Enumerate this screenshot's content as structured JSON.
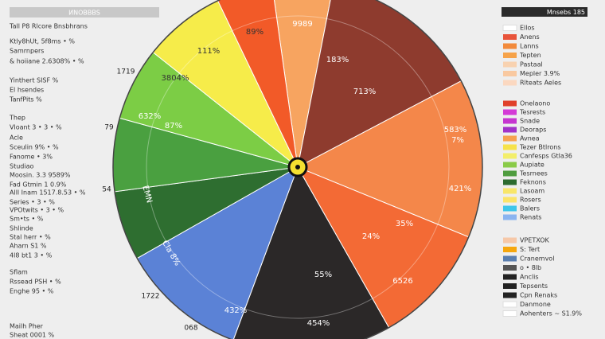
{
  "header": {
    "title": "ИNOBBBS",
    "right_title": "Mnsebs 185"
  },
  "left_panel": [
    "Tall P8 Rlcore Bnsbhrans",
    "Ktly8hUt, 5f8ms • %",
    "Samrnpers",
    "& hoiiane 2.6308% • %",
    "Yinthert SISF %",
    "El hsendes",
    "TanfPits %",
    "Thep",
    "Vloant 3 • 3 • %",
    "Acle",
    "Sceulin 9% • %",
    "Fanome • 3%",
    "Studiao",
    "Moosin. 3.3 9589%",
    "Fad Gtmin 1 0.9%",
    "Alll Inam 1517.8.53 • %",
    "Series • 3 • %",
    "VPOtwits • 3 • %",
    "Sm•ts • %",
    "Shlinde",
    "Stal herr • %",
    "Aharn S1 %",
    "4l8 bt1 3 • %",
    "Sflam",
    "Rssead PSH • %",
    "Enghe 95 • %",
    "Mailh Pher",
    "Sheat 0001 %"
  ],
  "chart_data": {
    "type": "pie",
    "categories": [
      null,
      null,
      null,
      null,
      null,
      null,
      null,
      null,
      null,
      null,
      null
    ],
    "values": [
      5.3,
      14.2,
      13.9,
      10.6,
      13.9,
      11.1,
      6.1,
      6.4,
      6.4,
      7.2,
      4.9
    ],
    "colors": [
      "#f7a460",
      "#8e3b2e",
      "#f4874a",
      "#f36a35",
      "#2b2828",
      "#5b82d6",
      "#2e6e30",
      "#4aa040",
      "#7ccd45",
      "#f6ec4a",
      "#f25a28"
    ],
    "annotations": [
      "89%",
      "9989",
      "111%",
      "183%",
      "3804%",
      "713%",
      "632%",
      "87%",
      "583%",
      "7%",
      "421%",
      "35%",
      "24%",
      "6526",
      "55%",
      "432%",
      "454%",
      "EMN",
      "Cla 8%"
    ],
    "outer_labels": [
      "1719",
      "79",
      "54",
      "1722",
      "068"
    ]
  },
  "legend_groups": [
    [
      {
        "name": "Ellos",
        "color": "#ffffff"
      },
      {
        "name": "Anens",
        "color": "#e8533a"
      },
      {
        "name": "Lanns",
        "color": "#f28a3b"
      },
      {
        "name": "Tepten",
        "color": "#f6a34a"
      },
      {
        "name": "Pastaal",
        "color": "#f8d2b0"
      },
      {
        "name": "Mepler 3.9%",
        "color": "#f9c9a0"
      },
      {
        "name": "Rlteats Aeles",
        "color": "#fbd8c0"
      }
    ],
    [
      {
        "name": "Onelaono",
        "color": "#e0402a"
      },
      {
        "name": "Tesrests",
        "color": "#d43ad6"
      },
      {
        "name": "Snade",
        "color": "#c635d0"
      },
      {
        "name": "Deoraps",
        "color": "#a232c8"
      },
      {
        "name": "Avnea",
        "color": "#f6a24f"
      },
      {
        "name": "Tezer Btlrons",
        "color": "#f6e24a"
      },
      {
        "name": "Canfesps Gtla36",
        "color": "#f3ee6a"
      },
      {
        "name": "Aupiate",
        "color": "#8acb48"
      },
      {
        "name": "Tesrnees",
        "color": "#4f9d3f"
      },
      {
        "name": "Feknons",
        "color": "#2c6b2f"
      },
      {
        "name": "Lasoam",
        "color": "#f8e66a"
      },
      {
        "name": "Rosers",
        "color": "#fbe46a"
      },
      {
        "name": "Balers",
        "color": "#3ec6ea"
      },
      {
        "name": "Renats",
        "color": "#8ab4f0"
      }
    ],
    [
      {
        "name": "VPETXOK",
        "color": "#f6c8a8"
      },
      {
        "name": "S: Tert",
        "color": "#f6a70e"
      },
      {
        "name": "Cranemvol",
        "color": "#5a7fb0"
      },
      {
        "name": "o • 8lb",
        "color": "#555555"
      },
      {
        "name": "Anclis",
        "color": "#222222"
      },
      {
        "name": "Tepsents",
        "color": "#222222"
      },
      {
        "name": "Cpn Renaks",
        "color": "#222222"
      },
      {
        "name": "Danmone",
        "color": "#ffffff"
      },
      {
        "name": "Aohenters ~ S1.9%",
        "color": "#ffffff"
      }
    ]
  ]
}
